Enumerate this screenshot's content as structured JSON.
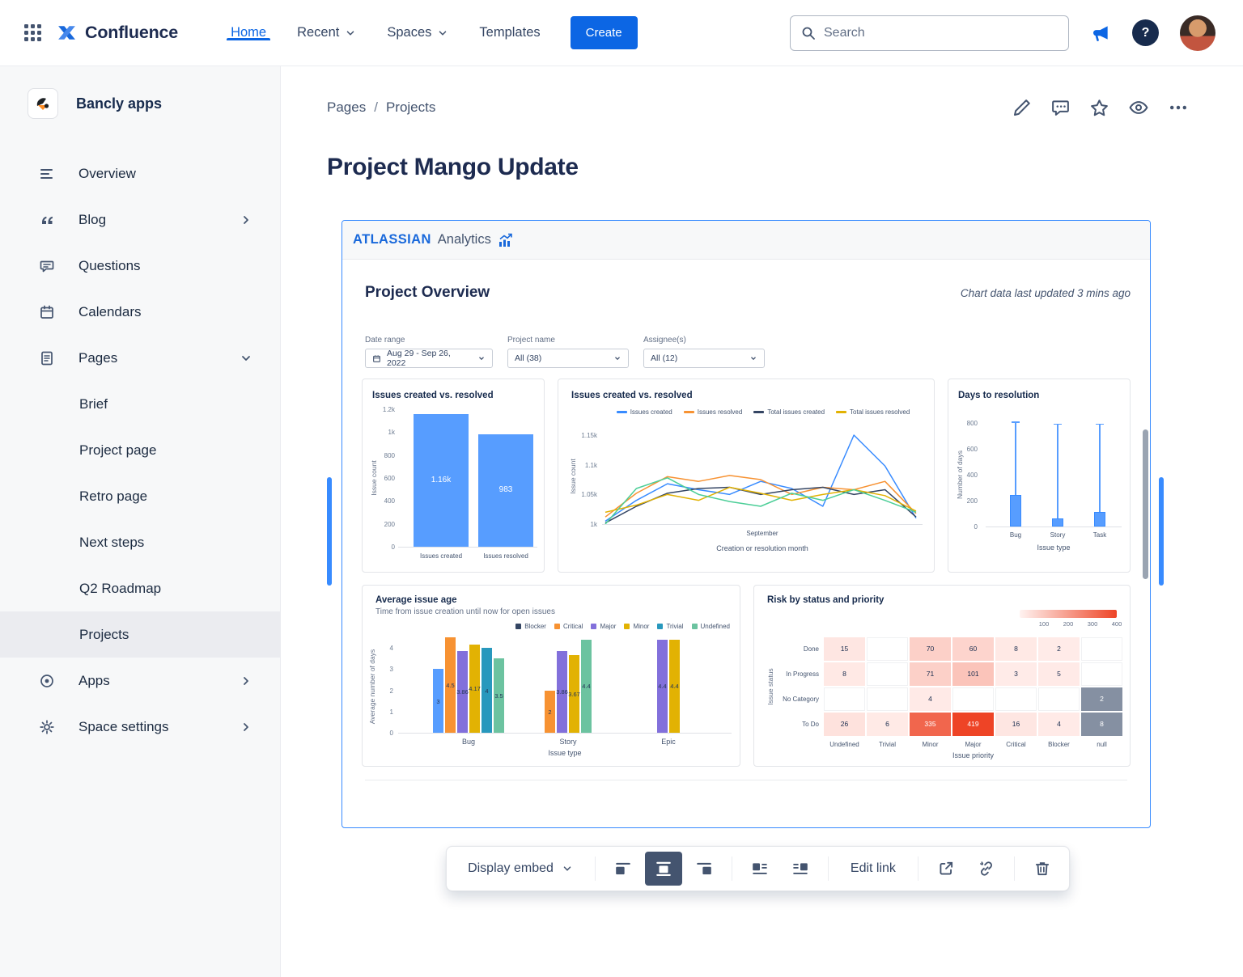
{
  "topnav": {
    "brand": "Confluence",
    "nav_items": [
      {
        "label": "Home",
        "active": true,
        "chevron": false
      },
      {
        "label": "Recent",
        "active": false,
        "chevron": true
      },
      {
        "label": "Spaces",
        "active": false,
        "chevron": true
      },
      {
        "label": "Templates",
        "active": false,
        "chevron": false
      }
    ],
    "create_label": "Create",
    "search_placeholder": "Search",
    "help_glyph": "?"
  },
  "sidebar": {
    "space_name": "Bancly apps",
    "items": [
      {
        "label": "Overview",
        "icon": "overview-icon"
      },
      {
        "label": "Blog",
        "icon": "quote-icon",
        "chevron": "right"
      },
      {
        "label": "Questions",
        "icon": "speech-bubble-icon"
      },
      {
        "label": "Calendars",
        "icon": "calendar-icon"
      },
      {
        "label": "Pages",
        "icon": "page-icon",
        "chevron": "down"
      }
    ],
    "page_children": [
      {
        "label": "Brief",
        "selected": false
      },
      {
        "label": "Project page",
        "selected": false
      },
      {
        "label": "Retro page",
        "selected": false
      },
      {
        "label": "Next steps",
        "selected": false
      },
      {
        "label": "Q2 Roadmap",
        "selected": false
      },
      {
        "label": "Projects",
        "selected": true
      }
    ],
    "bottom_items": [
      {
        "label": "Apps",
        "icon": "apps-icon",
        "chevron": "right"
      },
      {
        "label": "Space settings",
        "icon": "gear-icon",
        "chevron": "right"
      }
    ]
  },
  "page": {
    "breadcrumb": [
      "Pages",
      "Projects"
    ],
    "breadcrumb_separator": "/",
    "title": "Project Mango Update"
  },
  "embed": {
    "brand_primary": "ATLASSIAN",
    "brand_secondary": "Analytics",
    "heading": "Project Overview",
    "last_updated": "Chart data last updated 3 mins ago",
    "filters": [
      {
        "label": "Date range",
        "value": "Aug 29 - Sep 26, 2022",
        "calendar_icon": true
      },
      {
        "label": "Project name",
        "value": "All (38)",
        "calendar_icon": false
      },
      {
        "label": "Assignee(s)",
        "value": "All (12)",
        "calendar_icon": false
      }
    ]
  },
  "chart_data": [
    {
      "type": "bar",
      "title": "Issues created vs. resolved",
      "ylabel": "Issue count",
      "categories": [
        "Issues created",
        "Issues resolved"
      ],
      "values": [
        1160,
        983
      ],
      "value_labels": [
        "1.16k",
        "983"
      ],
      "ylim": [
        0,
        1200
      ],
      "yticks": [
        "1.2k",
        "1k",
        "800",
        "600",
        "400",
        "200",
        "0"
      ],
      "bar_color": "#579DFF"
    },
    {
      "type": "line",
      "title": "Issues created vs. resolved",
      "ylabel": "Issue count",
      "xlabel": "Creation or resolution month",
      "xticks": [
        "September"
      ],
      "yticks": [
        "1.15k",
        "1.1k",
        "1.05k",
        "1k"
      ],
      "ylim": [
        1000,
        1150
      ],
      "legend": [
        {
          "label": "Issues created",
          "color": "#388BFF"
        },
        {
          "label": "Issues resolved",
          "color": "#F79232"
        },
        {
          "label": "Total issues created",
          "color": "#344563"
        },
        {
          "label": "Total issues resolved",
          "color": "#E2B203"
        }
      ],
      "lines": [
        {
          "name": "Issues created",
          "color": "#388BFF",
          "values": [
            1005,
            1040,
            1068,
            1058,
            1050,
            1072,
            1060,
            1030,
            1150,
            1098,
            1010
          ]
        },
        {
          "name": "Issues resolved",
          "color": "#F79232",
          "values": [
            1012,
            1052,
            1080,
            1072,
            1082,
            1075,
            1050,
            1062,
            1058,
            1072,
            1018
          ]
        },
        {
          "name": "Total issues created",
          "color": "#344563",
          "values": [
            1002,
            1030,
            1052,
            1060,
            1062,
            1050,
            1058,
            1062,
            1050,
            1058,
            1012
          ]
        },
        {
          "name": "Total issues resolved",
          "color": "#E2B203",
          "values": [
            1020,
            1032,
            1050,
            1040,
            1062,
            1052,
            1040,
            1050,
            1058,
            1048,
            1022
          ]
        },
        {
          "name": null,
          "color": "#4BCE97",
          "values": [
            1000,
            1060,
            1078,
            1050,
            1038,
            1030,
            1052,
            1040,
            1058,
            1040,
            1020
          ]
        }
      ]
    },
    {
      "type": "boxplot",
      "title": "Days to resolution",
      "ylabel": "Number of days",
      "xlabel": "Issue type",
      "categories": [
        "Bug",
        "Story",
        "Task"
      ],
      "ylim": [
        0,
        800
      ],
      "yticks": [
        "800",
        "600",
        "400",
        "200",
        "0"
      ],
      "boxes": [
        {
          "category": "Bug",
          "low": 0,
          "q1": 0,
          "q3": 245,
          "high": 810
        },
        {
          "category": "Story",
          "low": 0,
          "q1": 0,
          "q3": 60,
          "high": 795
        },
        {
          "category": "Task",
          "low": 0,
          "q1": 0,
          "q3": 110,
          "high": 795
        }
      ],
      "box_color": "#579DFF"
    },
    {
      "type": "grouped_bar",
      "title": "Average issue age",
      "subtitle": "Time from issue creation until now for open issues",
      "ylabel": "Average number of days",
      "xlabel": "Issue type",
      "categories": [
        "Bug",
        "Story",
        "Epic"
      ],
      "ylim": [
        0,
        4
      ],
      "yticks": [
        "4",
        "3",
        "2",
        "1",
        "0"
      ],
      "series": [
        {
          "name": "Blocker",
          "color": "#579DFF",
          "legend_color": "#344563",
          "values": [
            3,
            null,
            null
          ]
        },
        {
          "name": "Critical",
          "color": "#F79232",
          "values": [
            4.5,
            2,
            null
          ]
        },
        {
          "name": "Major",
          "color": "#8270DB",
          "values": [
            3.86,
            3.86,
            4.4
          ]
        },
        {
          "name": "Minor",
          "color": "#E2B203",
          "values": [
            4.17,
            3.67,
            4.4
          ]
        },
        {
          "name": "Trivial",
          "color": "#2898BD",
          "values": [
            4,
            null,
            null
          ]
        },
        {
          "name": "Undefined",
          "color": "#6CC3A0",
          "values": [
            3.5,
            4.4,
            null
          ]
        }
      ]
    },
    {
      "type": "heatmap",
      "title": "Risk by status and priority",
      "ylabel": "Issue status",
      "xlabel": "Issue priority",
      "rows": [
        "Done",
        "In Progress",
        "No Category",
        "To Do"
      ],
      "columns": [
        "Undefined",
        "Trivial",
        "Minor",
        "Major",
        "Critical",
        "Blocker",
        "null"
      ],
      "cells": [
        [
          15,
          null,
          70,
          60,
          8,
          2,
          null
        ],
        [
          8,
          null,
          71,
          101,
          3,
          5,
          null
        ],
        [
          null,
          null,
          4,
          null,
          null,
          null,
          2
        ],
        [
          26,
          6,
          335,
          419,
          16,
          4,
          8
        ]
      ],
      "null_cell_color": "#8590A2",
      "scale_labels": [
        "100",
        "200",
        "300",
        "400"
      ],
      "scale_colors": [
        "#FFF3F1",
        "#EE4426"
      ]
    }
  ],
  "toolbar": {
    "display_embed_label": "Display embed",
    "edit_link_label": "Edit link"
  },
  "colors": {
    "accent_blue": "#0C66E4",
    "embed_border": "#388BFF",
    "chart_blue": "#579DFF"
  }
}
